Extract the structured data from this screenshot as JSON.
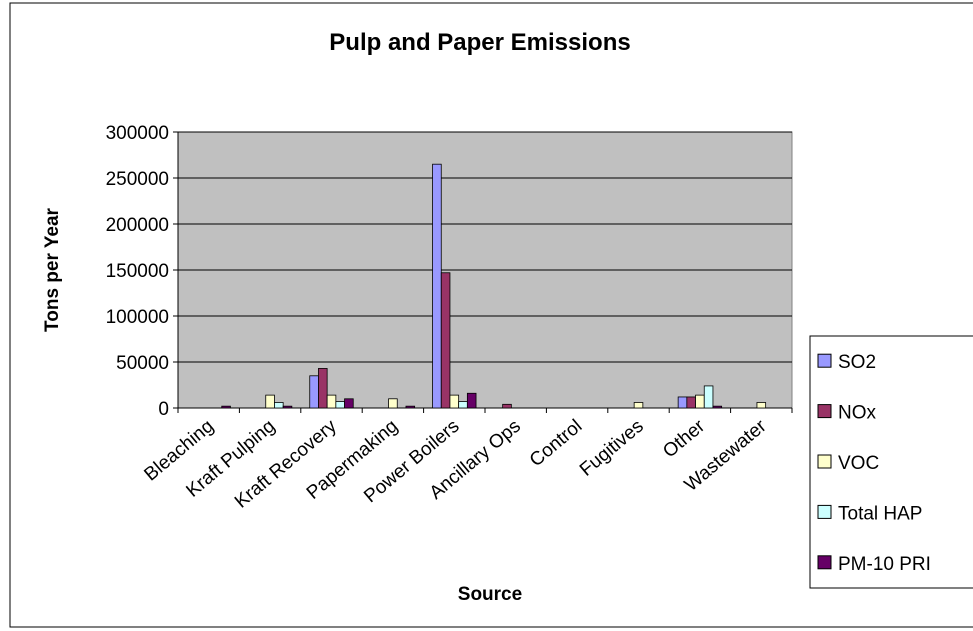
{
  "chart_data": {
    "type": "bar",
    "title": "Pulp and Paper Emissions",
    "xlabel": "Source",
    "ylabel": "Tons per Year",
    "ylim": [
      0,
      300000
    ],
    "yticks": [
      0,
      50000,
      100000,
      150000,
      200000,
      250000,
      300000
    ],
    "grid": true,
    "legend_position": "right",
    "categories": [
      "Bleaching",
      "Kraft Pulping",
      "Kraft Recovery",
      "Papermaking",
      "Power Boilers",
      "Ancillary Ops",
      "Control",
      "Fugitives",
      "Other",
      "Wastewater"
    ],
    "series": [
      {
        "name": "SO2",
        "color": "#9999ff",
        "values": [
          0,
          0,
          35000,
          0,
          265000,
          0,
          0,
          0,
          12000,
          0
        ]
      },
      {
        "name": "NOx",
        "color": "#993366",
        "values": [
          0,
          0,
          43000,
          0,
          147000,
          4000,
          0,
          0,
          12000,
          0
        ]
      },
      {
        "name": "VOC",
        "color": "#ffffcc",
        "values": [
          0,
          14000,
          14000,
          10000,
          14000,
          0,
          0,
          6000,
          14000,
          6000
        ]
      },
      {
        "name": "Total HAP",
        "color": "#ccffff",
        "values": [
          0,
          6000,
          7000,
          0,
          7000,
          0,
          0,
          0,
          24000,
          0
        ]
      },
      {
        "name": "PM-10 PRI",
        "color": "#660066",
        "values": [
          2000,
          2000,
          10000,
          2000,
          16000,
          0,
          0,
          0,
          2000,
          0
        ]
      }
    ],
    "plot_background": "#c0c0c0"
  }
}
